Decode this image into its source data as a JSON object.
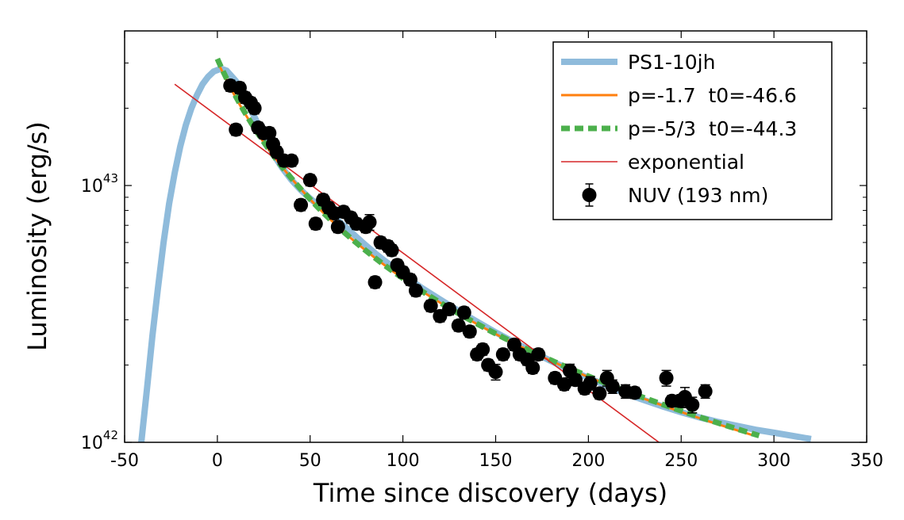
{
  "chart_data": {
    "type": "scatter",
    "xlabel": "Time since discovery (days)",
    "ylabel": "Luminosity (erg/s)",
    "xlim": [
      -50,
      350
    ],
    "ylim": [
      1e+42,
      4e+43
    ],
    "yscale": "log",
    "x_ticks": [
      {
        "value": -50,
        "label": "-50"
      },
      {
        "value": 0,
        "label": "0"
      },
      {
        "value": 50,
        "label": "50"
      },
      {
        "value": 100,
        "label": "100"
      },
      {
        "value": 150,
        "label": "150"
      },
      {
        "value": 200,
        "label": "200"
      },
      {
        "value": 250,
        "label": "250"
      },
      {
        "value": 300,
        "label": "300"
      },
      {
        "value": 350,
        "label": "350"
      }
    ],
    "y_ticks": [
      {
        "value": 1e+42,
        "base": "10",
        "exp": "42"
      },
      {
        "value": 1e+43,
        "base": "10",
        "exp": "43"
      }
    ],
    "legend_position": "top-right",
    "colors": {
      "ps1": "#8fbbdb",
      "fit1": "#ff7f0e",
      "fit2": "#4cb04c",
      "exp": "#d62728",
      "data": "#000000"
    },
    "series": [
      {
        "name": "PS1-10jh",
        "kind": "line",
        "color_key": "ps1",
        "x": [
          -41,
          -38,
          -35,
          -32,
          -29,
          -26,
          -23,
          -20,
          -17,
          -14,
          -11,
          -8,
          -5,
          -2,
          2,
          5,
          10,
          15,
          20,
          25,
          30,
          35,
          40,
          45,
          50,
          55,
          60,
          65,
          70,
          75,
          80,
          85,
          90,
          95,
          100,
          110,
          120,
          130,
          140,
          150,
          160,
          170,
          180,
          190,
          200,
          210,
          220,
          230,
          240,
          250,
          260,
          270,
          280,
          290,
          300,
          310,
          320
        ],
        "y": [
          1e+42,
          1.6e+42,
          2.6e+42,
          4e+42,
          6e+42,
          8.5e+42,
          1.12e+43,
          1.42e+43,
          1.72e+43,
          2e+43,
          2.25e+43,
          2.48e+43,
          2.65e+43,
          2.78e+43,
          2.85e+43,
          2.8e+43,
          2.55e+43,
          2.2e+43,
          1.85e+43,
          1.55e+43,
          1.33e+43,
          1.17e+43,
          1.05e+43,
          9.6e+42,
          8.9e+42,
          8.3e+42,
          7.8e+42,
          7.3e+42,
          6.8e+42,
          6.3e+42,
          5.85e+42,
          5.45e+42,
          5.1e+42,
          4.8e+42,
          4.5e+42,
          4e+42,
          3.6e+42,
          3.25e+42,
          2.95e+42,
          2.68e+42,
          2.45e+42,
          2.25e+42,
          2.07e+42,
          1.92e+42,
          1.78e+42,
          1.66e+42,
          1.55e+42,
          1.46e+42,
          1.38e+42,
          1.31e+42,
          1.25e+42,
          1.2e+42,
          1.16e+42,
          1.12e+42,
          1.09e+42,
          1.06e+42,
          1.03e+42
        ]
      },
      {
        "name": "p=-1.7  t0=-46.6",
        "kind": "line",
        "color_key": "fit1",
        "t0": -46.6,
        "p": -1.7,
        "x_range": [
          0,
          290
        ],
        "y_anchor": {
          "x": 100,
          "y": 4.35e+42
        }
      },
      {
        "name": "p=-5/3  t0=-44.3",
        "kind": "dashed",
        "color_key": "fit2",
        "t0": -44.3,
        "p": -1.6667,
        "x_range": [
          0,
          292
        ],
        "y_anchor": {
          "x": 100,
          "y": 4.35e+42
        }
      },
      {
        "name": "exponential",
        "kind": "line",
        "color_key": "exp",
        "x": [
          -23,
          238
        ],
        "y": [
          2.48e+43,
          1e+42
        ]
      },
      {
        "name": "NUV (193 nm)",
        "kind": "errorbar",
        "color_key": "data",
        "x": [
          7,
          10,
          12,
          15,
          18,
          20,
          22,
          25,
          28,
          30,
          32,
          36,
          40,
          45,
          50,
          53,
          57,
          60,
          63,
          65,
          68,
          72,
          75,
          80,
          82,
          85,
          88,
          92,
          94,
          97,
          100,
          104,
          107,
          115,
          120,
          125,
          130,
          133,
          136,
          140,
          143,
          146,
          150,
          154,
          160,
          163,
          167,
          170,
          173,
          182,
          187,
          190,
          193,
          198,
          201,
          206,
          210,
          213,
          220,
          225,
          242,
          245,
          249,
          252,
          256,
          263
        ],
        "y": [
          2.45e+43,
          1.65e+43,
          2.4e+43,
          2.2e+43,
          2.1e+43,
          2e+43,
          1.68e+43,
          1.6e+43,
          1.6e+43,
          1.45e+43,
          1.35e+43,
          1.25e+43,
          1.25e+43,
          8.4e+42,
          1.05e+43,
          7.1e+42,
          8.8e+42,
          8.2e+42,
          7.8e+42,
          6.9e+42,
          7.9e+42,
          7.5e+42,
          7.1e+42,
          6.9e+42,
          7.2e+42,
          4.2e+42,
          6e+42,
          5.8e+42,
          5.6e+42,
          4.9e+42,
          4.6e+42,
          4.3e+42,
          3.9e+42,
          3.4e+42,
          3.1e+42,
          3.3e+42,
          2.85e+42,
          3.2e+42,
          2.7e+42,
          2.2e+42,
          2.3e+42,
          2e+42,
          1.88e+42,
          2.2e+42,
          2.4e+42,
          2.2e+42,
          2.1e+42,
          1.95e+42,
          2.2e+42,
          1.78e+42,
          1.68e+42,
          1.9e+42,
          1.75e+42,
          1.62e+42,
          1.7e+42,
          1.55e+42,
          1.78e+42,
          1.65e+42,
          1.58e+42,
          1.56e+42,
          1.78e+42,
          1.45e+42,
          1.45e+42,
          1.5e+42,
          1.4e+42,
          1.58e+42
        ],
        "err": [
          0.05,
          0.05,
          0.05,
          0.05,
          0.05,
          0.05,
          0.05,
          0.05,
          0.05,
          0.05,
          0.05,
          0.05,
          0.05,
          0.05,
          0.05,
          0.05,
          0.05,
          0.05,
          0.05,
          0.05,
          0.05,
          0.05,
          0.05,
          0.05,
          0.07,
          0.05,
          0.05,
          0.05,
          0.05,
          0.05,
          0.05,
          0.05,
          0.05,
          0.05,
          0.05,
          0.05,
          0.05,
          0.05,
          0.05,
          0.05,
          0.05,
          0.05,
          0.07,
          0.05,
          0.05,
          0.05,
          0.05,
          0.05,
          0.05,
          0.05,
          0.05,
          0.06,
          0.05,
          0.05,
          0.06,
          0.05,
          0.07,
          0.06,
          0.06,
          0.05,
          0.07,
          0.05,
          0.05,
          0.09,
          0.07,
          0.06
        ]
      }
    ]
  }
}
